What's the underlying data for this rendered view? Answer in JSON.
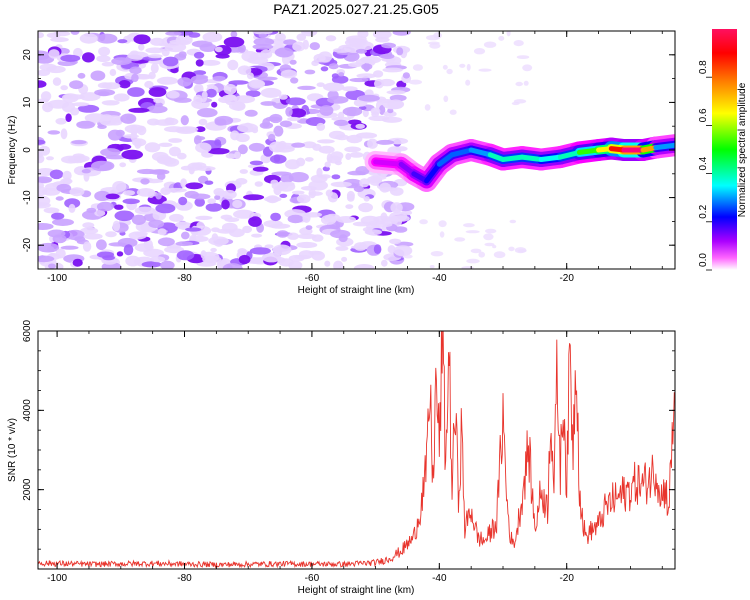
{
  "figure": {
    "title": "PAZ1.2025.027.21.25.G05"
  },
  "chart_data": [
    {
      "type": "heatmap",
      "title": "PAZ1.2025.027.21.25.G05",
      "xlabel": "Height of straight line (km)",
      "ylabel": "Frequency (Hz)",
      "xlim": [
        -103,
        -3
      ],
      "ylim": [
        -25,
        25
      ],
      "xticks": [
        -100,
        -80,
        -60,
        -40,
        -20
      ],
      "yticks": [
        -20,
        -10,
        0,
        10,
        20
      ],
      "colorbar": {
        "label": "Normalized spectral amplitude",
        "range": [
          0.0,
          1.0
        ],
        "ticks": [
          0.0,
          0.2,
          0.4,
          0.6,
          0.8
        ],
        "colormap": [
          "#ffffff",
          "#ff00ff",
          "#8000ff",
          "#0000ff",
          "#00ffff",
          "#00ff00",
          "#ffff00",
          "#ff8000",
          "#ff0000",
          "#ff0080"
        ]
      },
      "ridge": [
        {
          "x": -50,
          "y": -2.5,
          "amp": 0.12
        },
        {
          "x": -46,
          "y": -3,
          "amp": 0.18
        },
        {
          "x": -44,
          "y": -5,
          "amp": 0.25
        },
        {
          "x": -42,
          "y": -6.5,
          "amp": 0.3
        },
        {
          "x": -40,
          "y": -3,
          "amp": 0.35
        },
        {
          "x": -38,
          "y": -1,
          "amp": 0.4
        },
        {
          "x": -35,
          "y": 0,
          "amp": 0.35
        },
        {
          "x": -32,
          "y": -1,
          "amp": 0.45
        },
        {
          "x": -30,
          "y": -2,
          "amp": 0.5
        },
        {
          "x": -27,
          "y": -1.5,
          "amp": 0.45
        },
        {
          "x": -24,
          "y": -2,
          "amp": 0.5
        },
        {
          "x": -21,
          "y": -1.5,
          "amp": 0.4
        },
        {
          "x": -18,
          "y": -0.5,
          "amp": 0.55
        },
        {
          "x": -15,
          "y": 0,
          "amp": 0.6
        },
        {
          "x": -13,
          "y": 0.3,
          "amp": 0.75
        },
        {
          "x": -11,
          "y": 0,
          "amp": 1.0
        },
        {
          "x": -8,
          "y": 0,
          "amp": 1.0
        },
        {
          "x": -6,
          "y": 0.5,
          "amp": 0.5
        },
        {
          "x": -3,
          "y": 1,
          "amp": 0.3
        }
      ]
    },
    {
      "type": "line",
      "xlabel": "Height of straight line (km)",
      "ylabel": "SNR (10 * v/v)",
      "xlim": [
        -103,
        -3
      ],
      "ylim": [
        0,
        6000
      ],
      "xticks": [
        -100,
        -80,
        -60,
        -40,
        -20
      ],
      "yticks": [
        2000,
        4000,
        6000
      ],
      "series": [
        {
          "color": "#e8342c",
          "x": [
            -103,
            -95,
            -85,
            -75,
            -65,
            -55,
            -50,
            -48,
            -46,
            -44,
            -43,
            -42,
            -41.5,
            -41,
            -40.5,
            -40,
            -39.5,
            -39,
            -38.5,
            -38,
            -37.5,
            -37,
            -36.5,
            -36,
            -35,
            -34,
            -33,
            -32,
            -31,
            -30,
            -29.5,
            -29,
            -28.5,
            -28,
            -27,
            -26,
            -25,
            -24,
            -23,
            -22.5,
            -22,
            -21.5,
            -21,
            -20.5,
            -20,
            -19.5,
            -19,
            -18.5,
            -18,
            -17.5,
            -17,
            -16,
            -15,
            -14,
            -13,
            -12,
            -11,
            -10,
            -9,
            -8,
            -7,
            -6,
            -5,
            -4.5,
            -4,
            -3.5,
            -3
          ],
          "y": [
            150,
            120,
            140,
            110,
            130,
            120,
            160,
            250,
            450,
            800,
            1500,
            2500,
            4500,
            2200,
            4800,
            3000,
            6000,
            2500,
            5700,
            2000,
            4100,
            1800,
            3500,
            1000,
            1500,
            800,
            700,
            900,
            1200,
            3900,
            2000,
            1000,
            600,
            800,
            1800,
            3100,
            1000,
            2000,
            1500,
            4200,
            2000,
            5000,
            2500,
            4500,
            2000,
            5500,
            3000,
            5800,
            2000,
            1200,
            800,
            1000,
            1100,
            1500,
            1700,
            1800,
            1900,
            2000,
            2200,
            2100,
            2300,
            2500,
            1800,
            2100,
            1500,
            3000,
            4500
          ]
        }
      ]
    }
  ]
}
